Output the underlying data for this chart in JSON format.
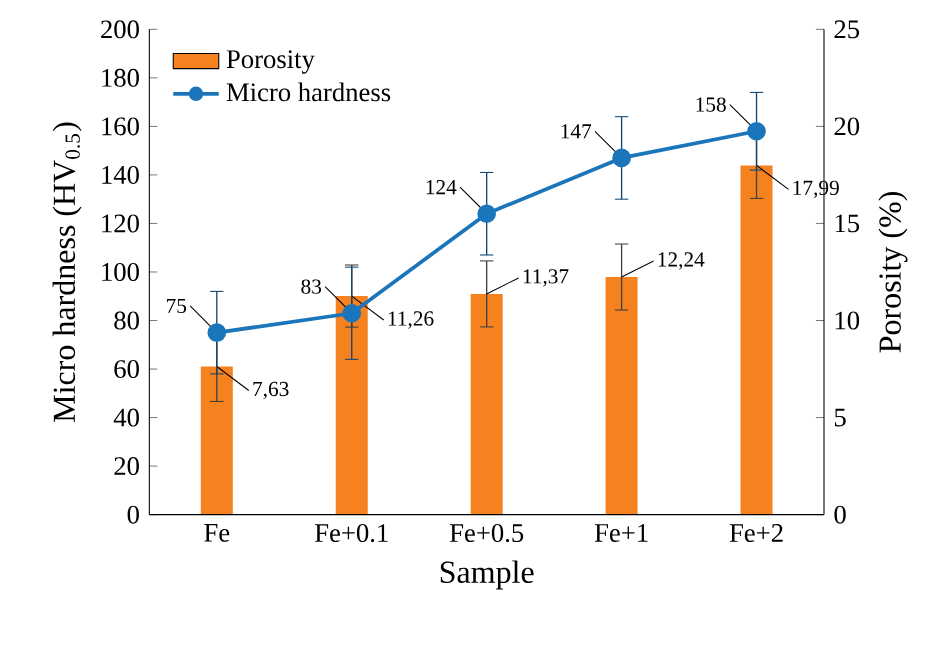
{
  "chart_data": {
    "type": "bar",
    "xlabel": "Sample",
    "ylabel": "Micro hardness (HV$_{0.5}$)",
    "y2label": "Porosity (%)",
    "categories": [
      "Fe",
      "Fe+0.1",
      "Fe+0.5",
      "Fe+1",
      "Fe+2"
    ],
    "series": [
      {
        "name": "Porosity",
        "axis": "y2",
        "color": "#f5821f",
        "values": [
          7.63,
          11.26,
          11.37,
          12.24,
          17.99
        ],
        "errors": [
          1.8,
          1.6,
          1.7,
          1.7,
          1.7
        ],
        "value_labels": [
          "7,63",
          "11,26",
          "11,37",
          "12,24",
          "17,99"
        ]
      },
      {
        "name": "Micro hardness",
        "type": "line",
        "axis": "y",
        "color": "#1b75bb",
        "marker": "circle",
        "values": [
          75,
          83,
          124,
          147,
          158
        ],
        "errors": [
          17,
          19,
          17,
          17,
          16
        ],
        "value_labels": [
          "75",
          "83",
          "124",
          "147",
          "158"
        ]
      }
    ],
    "ylim": [
      0,
      200
    ],
    "yticks": [
      0,
      20,
      40,
      60,
      80,
      100,
      120,
      140,
      160,
      180,
      200
    ],
    "y2lim": [
      0,
      25
    ],
    "y2ticks": [
      0,
      5,
      10,
      15,
      20,
      25
    ],
    "grid": false,
    "legend": "top left"
  }
}
